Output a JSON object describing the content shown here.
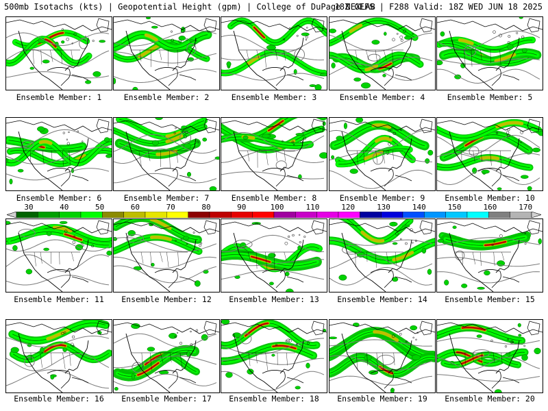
{
  "header": {
    "left": "500mb Isotachs (kts) | Geopotential Height (gpm) | College of DuPage NEXLAB",
    "right": "18Z GEFS | F288 Valid: 18Z WED JUN 18 2025"
  },
  "panels": [
    {
      "label": "Ensemble Member: 1"
    },
    {
      "label": "Ensemble Member: 2"
    },
    {
      "label": "Ensemble Member: 3"
    },
    {
      "label": "Ensemble Member: 4"
    },
    {
      "label": "Ensemble Member: 5"
    },
    {
      "label": "Ensemble Member: 6"
    },
    {
      "label": "Ensemble Member: 7"
    },
    {
      "label": "Ensemble Member: 8"
    },
    {
      "label": "Ensemble Member: 9"
    },
    {
      "label": "Ensemble Member: 10"
    },
    {
      "label": "Ensemble Member: 11"
    },
    {
      "label": "Ensemble Member: 12"
    },
    {
      "label": "Ensemble Member: 13"
    },
    {
      "label": "Ensemble Member: 14"
    },
    {
      "label": "Ensemble Member: 15"
    },
    {
      "label": "Ensemble Member: 16"
    },
    {
      "label": "Ensemble Member: 17"
    },
    {
      "label": "Ensemble Member: 18"
    },
    {
      "label": "Ensemble Member: 19"
    },
    {
      "label": "Ensemble Member: 20"
    }
  ],
  "colorbar": {
    "labels": [
      "30",
      "40",
      "50",
      "60",
      "70",
      "80",
      "90",
      "100",
      "110",
      "120",
      "130",
      "140",
      "150",
      "160",
      "170"
    ],
    "colors": [
      "#006400",
      "#00a000",
      "#00d200",
      "#00ff00",
      "#8c8c00",
      "#bebe00",
      "#e6e600",
      "#ffff00",
      "#8c0000",
      "#be0000",
      "#e60000",
      "#ff0000",
      "#a000a0",
      "#c800c8",
      "#e600e6",
      "#ff00ff",
      "#0000a0",
      "#0000dc",
      "#0050ff",
      "#0096ff",
      "#00c8ff",
      "#00ffff",
      "#808080",
      "#b4b4b4"
    ],
    "end_color": "#d2d2d2"
  }
}
